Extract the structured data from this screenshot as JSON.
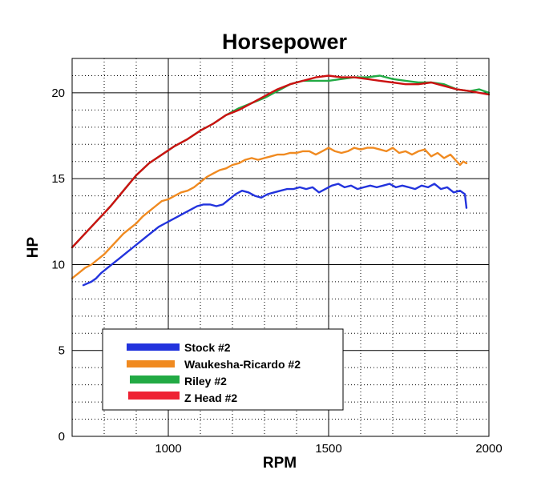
{
  "chart_data": {
    "type": "line",
    "title": "Horsepower",
    "xlabel": "RPM",
    "ylabel": "HP",
    "xlim": [
      700,
      2000
    ],
    "ylim": [
      0,
      22
    ],
    "x_ticks": [
      1000,
      1500,
      2000
    ],
    "y_ticks": [
      0,
      5,
      10,
      15,
      20
    ],
    "x_minor_step": 100,
    "y_minor_step": 1,
    "grid": true,
    "legend_position": "bottom-left",
    "series": [
      {
        "name": "Stock #2",
        "color": "#2233dd",
        "points": [
          [
            735,
            8.8
          ],
          [
            760,
            9.0
          ],
          [
            775,
            9.2
          ],
          [
            790,
            9.5
          ],
          [
            810,
            9.8
          ],
          [
            830,
            10.1
          ],
          [
            850,
            10.4
          ],
          [
            870,
            10.7
          ],
          [
            890,
            11.0
          ],
          [
            910,
            11.3
          ],
          [
            930,
            11.6
          ],
          [
            950,
            11.9
          ],
          [
            970,
            12.2
          ],
          [
            990,
            12.4
          ],
          [
            1010,
            12.6
          ],
          [
            1030,
            12.8
          ],
          [
            1050,
            13.0
          ],
          [
            1070,
            13.2
          ],
          [
            1090,
            13.4
          ],
          [
            1110,
            13.5
          ],
          [
            1130,
            13.5
          ],
          [
            1150,
            13.4
          ],
          [
            1170,
            13.5
          ],
          [
            1190,
            13.8
          ],
          [
            1210,
            14.1
          ],
          [
            1230,
            14.3
          ],
          [
            1250,
            14.2
          ],
          [
            1270,
            14.0
          ],
          [
            1290,
            13.9
          ],
          [
            1310,
            14.1
          ],
          [
            1330,
            14.2
          ],
          [
            1350,
            14.3
          ],
          [
            1370,
            14.4
          ],
          [
            1390,
            14.4
          ],
          [
            1410,
            14.5
          ],
          [
            1430,
            14.4
          ],
          [
            1450,
            14.5
          ],
          [
            1470,
            14.2
          ],
          [
            1490,
            14.4
          ],
          [
            1510,
            14.6
          ],
          [
            1530,
            14.7
          ],
          [
            1550,
            14.5
          ],
          [
            1570,
            14.6
          ],
          [
            1590,
            14.4
          ],
          [
            1610,
            14.5
          ],
          [
            1630,
            14.6
          ],
          [
            1650,
            14.5
          ],
          [
            1670,
            14.6
          ],
          [
            1690,
            14.7
          ],
          [
            1710,
            14.5
          ],
          [
            1730,
            14.6
          ],
          [
            1750,
            14.5
          ],
          [
            1770,
            14.4
          ],
          [
            1790,
            14.6
          ],
          [
            1810,
            14.5
          ],
          [
            1830,
            14.7
          ],
          [
            1850,
            14.4
          ],
          [
            1870,
            14.5
          ],
          [
            1890,
            14.2
          ],
          [
            1910,
            14.3
          ],
          [
            1925,
            14.1
          ],
          [
            1930,
            13.3
          ]
        ]
      },
      {
        "name": "Waukesha-Ricardo #2",
        "color": "#f08a20",
        "points": [
          [
            700,
            9.2
          ],
          [
            720,
            9.5
          ],
          [
            740,
            9.8
          ],
          [
            760,
            10.0
          ],
          [
            780,
            10.3
          ],
          [
            800,
            10.6
          ],
          [
            820,
            11.0
          ],
          [
            840,
            11.4
          ],
          [
            860,
            11.8
          ],
          [
            880,
            12.1
          ],
          [
            900,
            12.4
          ],
          [
            920,
            12.8
          ],
          [
            940,
            13.1
          ],
          [
            960,
            13.4
          ],
          [
            980,
            13.7
          ],
          [
            1000,
            13.8
          ],
          [
            1020,
            14.0
          ],
          [
            1040,
            14.2
          ],
          [
            1060,
            14.3
          ],
          [
            1080,
            14.5
          ],
          [
            1100,
            14.8
          ],
          [
            1120,
            15.1
          ],
          [
            1140,
            15.3
          ],
          [
            1160,
            15.5
          ],
          [
            1180,
            15.6
          ],
          [
            1200,
            15.8
          ],
          [
            1220,
            15.9
          ],
          [
            1240,
            16.1
          ],
          [
            1260,
            16.2
          ],
          [
            1280,
            16.1
          ],
          [
            1300,
            16.2
          ],
          [
            1320,
            16.3
          ],
          [
            1340,
            16.4
          ],
          [
            1360,
            16.4
          ],
          [
            1380,
            16.5
          ],
          [
            1400,
            16.5
          ],
          [
            1420,
            16.6
          ],
          [
            1440,
            16.6
          ],
          [
            1460,
            16.4
          ],
          [
            1480,
            16.6
          ],
          [
            1500,
            16.8
          ],
          [
            1520,
            16.6
          ],
          [
            1540,
            16.5
          ],
          [
            1560,
            16.6
          ],
          [
            1580,
            16.8
          ],
          [
            1600,
            16.7
          ],
          [
            1620,
            16.8
          ],
          [
            1640,
            16.8
          ],
          [
            1660,
            16.7
          ],
          [
            1680,
            16.6
          ],
          [
            1700,
            16.8
          ],
          [
            1720,
            16.5
          ],
          [
            1740,
            16.6
          ],
          [
            1760,
            16.4
          ],
          [
            1780,
            16.6
          ],
          [
            1800,
            16.7
          ],
          [
            1820,
            16.3
          ],
          [
            1840,
            16.5
          ],
          [
            1860,
            16.2
          ],
          [
            1880,
            16.4
          ],
          [
            1900,
            16.0
          ],
          [
            1910,
            15.8
          ],
          [
            1920,
            16.0
          ],
          [
            1930,
            15.9
          ]
        ]
      },
      {
        "name": "Riley #2",
        "color": "#22aa44",
        "points": [
          [
            700,
            11.0
          ],
          [
            740,
            11.8
          ],
          [
            780,
            12.6
          ],
          [
            820,
            13.4
          ],
          [
            860,
            14.3
          ],
          [
            900,
            15.2
          ],
          [
            940,
            15.9
          ],
          [
            980,
            16.4
          ],
          [
            1020,
            16.9
          ],
          [
            1060,
            17.3
          ],
          [
            1100,
            17.8
          ],
          [
            1140,
            18.2
          ],
          [
            1180,
            18.7
          ],
          [
            1220,
            19.1
          ],
          [
            1260,
            19.4
          ],
          [
            1300,
            19.7
          ],
          [
            1340,
            20.1
          ],
          [
            1380,
            20.5
          ],
          [
            1420,
            20.7
          ],
          [
            1460,
            20.7
          ],
          [
            1500,
            20.7
          ],
          [
            1540,
            20.8
          ],
          [
            1580,
            20.9
          ],
          [
            1620,
            20.9
          ],
          [
            1660,
            21.0
          ],
          [
            1700,
            20.8
          ],
          [
            1740,
            20.7
          ],
          [
            1780,
            20.6
          ],
          [
            1820,
            20.6
          ],
          [
            1860,
            20.5
          ],
          [
            1900,
            20.2
          ],
          [
            1940,
            20.1
          ],
          [
            1970,
            20.2
          ],
          [
            2000,
            20.0
          ]
        ]
      },
      {
        "name": "Z Head #2",
        "color": "#cc1111",
        "points": [
          [
            700,
            11.0
          ],
          [
            740,
            11.8
          ],
          [
            780,
            12.6
          ],
          [
            820,
            13.4
          ],
          [
            860,
            14.3
          ],
          [
            900,
            15.2
          ],
          [
            940,
            15.9
          ],
          [
            980,
            16.4
          ],
          [
            1020,
            16.9
          ],
          [
            1060,
            17.3
          ],
          [
            1100,
            17.8
          ],
          [
            1140,
            18.2
          ],
          [
            1180,
            18.7
          ],
          [
            1220,
            19.0
          ],
          [
            1260,
            19.4
          ],
          [
            1300,
            19.8
          ],
          [
            1340,
            20.2
          ],
          [
            1380,
            20.5
          ],
          [
            1420,
            20.7
          ],
          [
            1460,
            20.9
          ],
          [
            1500,
            21.0
          ],
          [
            1540,
            20.9
          ],
          [
            1580,
            20.9
          ],
          [
            1620,
            20.8
          ],
          [
            1660,
            20.7
          ],
          [
            1700,
            20.6
          ],
          [
            1740,
            20.5
          ],
          [
            1780,
            20.5
          ],
          [
            1820,
            20.6
          ],
          [
            1860,
            20.4
          ],
          [
            1900,
            20.2
          ],
          [
            1940,
            20.1
          ],
          [
            1970,
            20.0
          ],
          [
            2000,
            19.9
          ]
        ]
      }
    ]
  }
}
